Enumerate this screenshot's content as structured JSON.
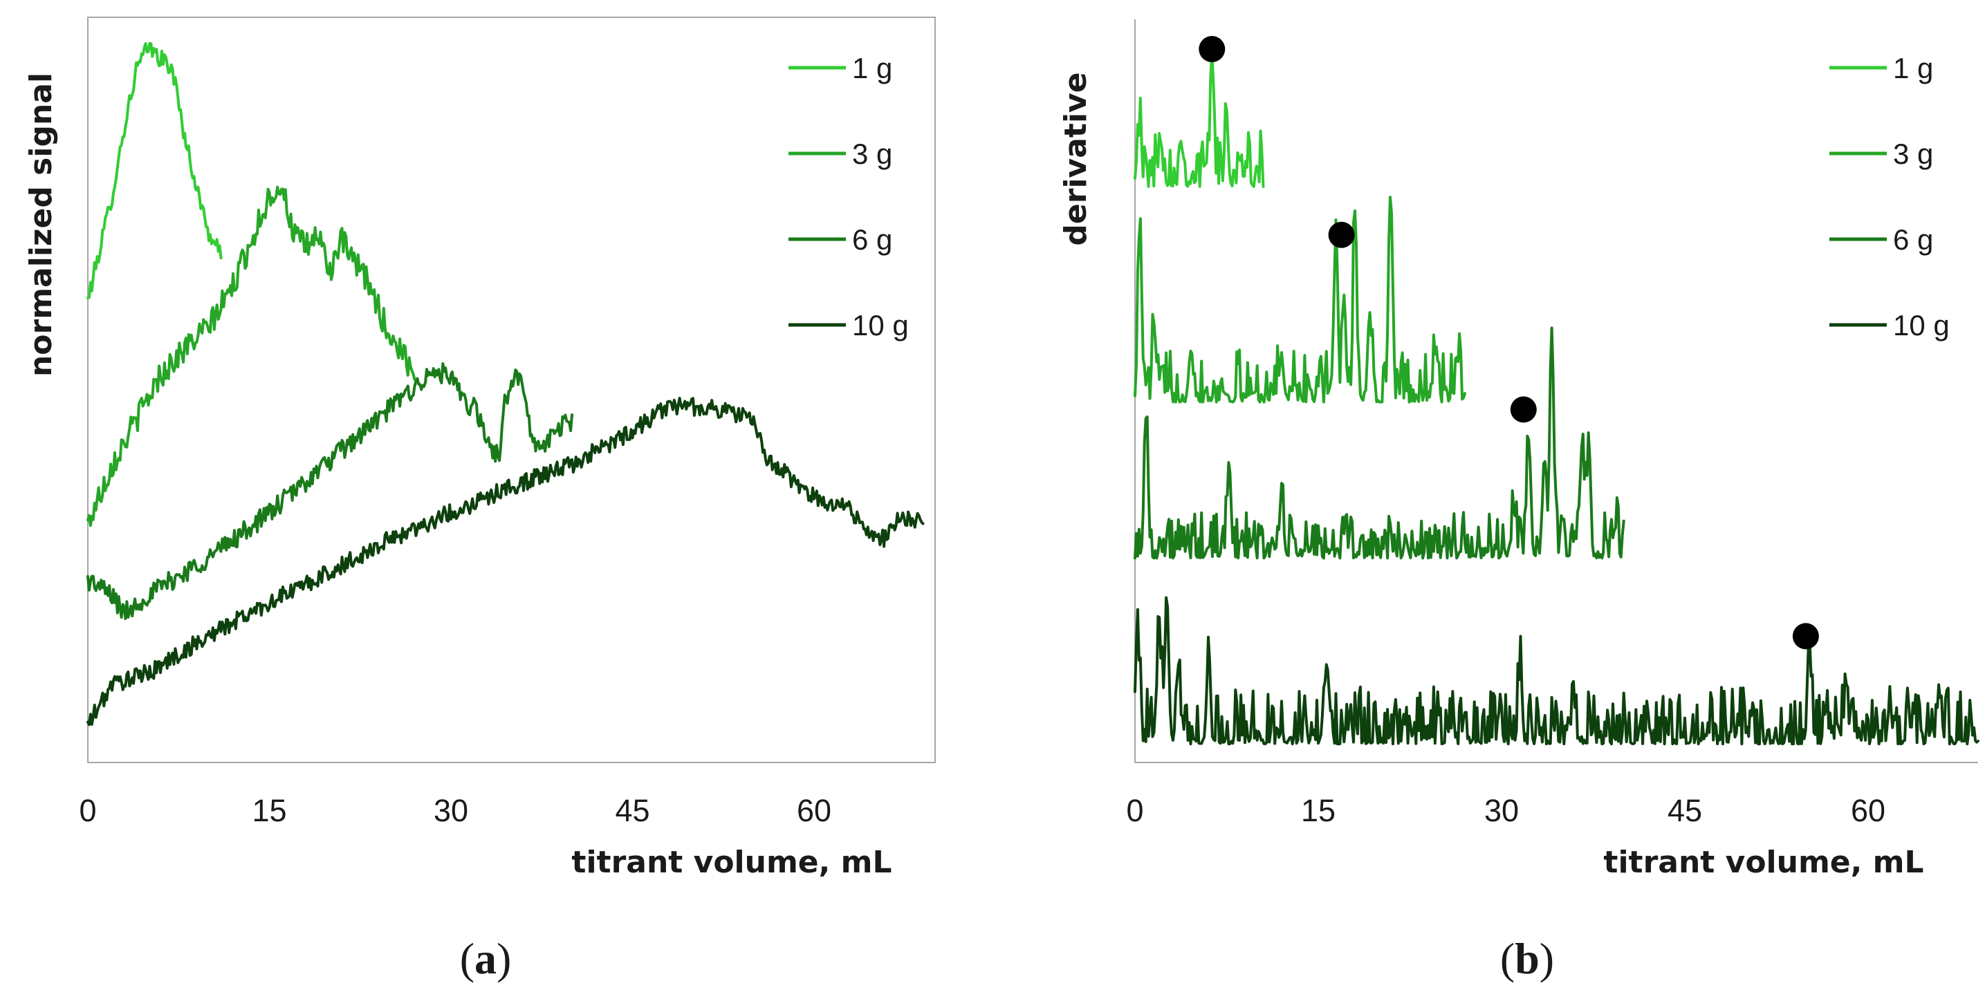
{
  "colors": {
    "1 g": "#33cc33",
    "3 g": "#26a626",
    "6 g": "#1a7a1a",
    "10 g": "#0d400d",
    "marker": "#000000",
    "axis": "#a6a6a6"
  },
  "chart_data": [
    {
      "panel": "a",
      "panel_label": "(a)",
      "panel_letter": "a",
      "type": "line",
      "title": "",
      "xlabel": "titrant volume, mL",
      "ylabel": "normalized signal",
      "xlim": [
        0,
        70
      ],
      "ylim": [
        0,
        10
      ],
      "x_ticks": [
        0,
        15,
        30,
        45,
        60
      ],
      "x_tick_labels": [
        "0",
        "15",
        "30",
        "45",
        "60"
      ],
      "y_tick_labels_shown": false,
      "legend": [
        "1 g",
        "3 g",
        "6 g",
        "10 g"
      ],
      "legend_position": "top-right",
      "series": [
        {
          "name": "1 g",
          "x_end": 11.0,
          "noise": 0.12,
          "points": [
            [
              0,
              6.2
            ],
            [
              1,
              6.9
            ],
            [
              2,
              7.6
            ],
            [
              3,
              8.5
            ],
            [
              4,
              9.3
            ],
            [
              5,
              9.6
            ],
            [
              6,
              9.45
            ],
            [
              7,
              9.3
            ],
            [
              8,
              8.4
            ],
            [
              9,
              7.7
            ],
            [
              10,
              7.1
            ],
            [
              11,
              6.8
            ]
          ]
        },
        {
          "name": "3 g",
          "x_end": 27.0,
          "noise": 0.18,
          "points": [
            [
              0,
              3.2
            ],
            [
              2,
              4.0
            ],
            [
              4,
              4.6
            ],
            [
              6,
              5.2
            ],
            [
              8,
              5.55
            ],
            [
              10,
              5.85
            ],
            [
              12,
              6.4
            ],
            [
              14,
              7.2
            ],
            [
              15,
              7.6
            ],
            [
              16,
              7.75
            ],
            [
              17,
              7.1
            ],
            [
              18,
              6.9
            ],
            [
              19,
              7.1
            ],
            [
              20,
              6.6
            ],
            [
              21,
              7.0
            ],
            [
              22,
              6.7
            ],
            [
              23,
              6.5
            ],
            [
              24,
              6.1
            ],
            [
              25,
              5.7
            ],
            [
              26,
              5.5
            ],
            [
              27,
              5.2
            ]
          ]
        },
        {
          "name": "6 g",
          "x_end": 40.0,
          "noise": 0.14,
          "points": [
            [
              0,
              2.45
            ],
            [
              1,
              2.35
            ],
            [
              2,
              2.25
            ],
            [
              3,
              2.0
            ],
            [
              5,
              2.25
            ],
            [
              10,
              2.75
            ],
            [
              15,
              3.35
            ],
            [
              20,
              4.05
            ],
            [
              25,
              4.75
            ],
            [
              27,
              5.05
            ],
            [
              29,
              5.25
            ],
            [
              30,
              5.15
            ],
            [
              31,
              4.85
            ],
            [
              32,
              4.75
            ],
            [
              33,
              4.3
            ],
            [
              34,
              4.1
            ],
            [
              34.5,
              4.9
            ],
            [
              35,
              5.05
            ],
            [
              35.5,
              5.25
            ],
            [
              36,
              4.9
            ],
            [
              37,
              4.2
            ],
            [
              38,
              4.3
            ],
            [
              39,
              4.5
            ],
            [
              40,
              4.6
            ]
          ]
        },
        {
          "name": "10 g",
          "x_end": 69.0,
          "noise": 0.12,
          "points": [
            [
              0,
              0.5
            ],
            [
              2,
              1.05
            ],
            [
              5,
              1.2
            ],
            [
              10,
              1.7
            ],
            [
              15,
              2.15
            ],
            [
              20,
              2.55
            ],
            [
              25,
              3.0
            ],
            [
              30,
              3.35
            ],
            [
              35,
              3.7
            ],
            [
              40,
              4.0
            ],
            [
              45,
              4.45
            ],
            [
              48,
              4.8
            ],
            [
              52,
              4.75
            ],
            [
              55,
              4.6
            ],
            [
              56,
              4.1
            ],
            [
              60,
              3.55
            ],
            [
              63,
              3.4
            ],
            [
              65,
              3.0
            ],
            [
              66,
              3.0
            ],
            [
              67,
              3.3
            ],
            [
              69,
              3.2
            ]
          ]
        }
      ]
    },
    {
      "panel": "b",
      "panel_label": "(b)",
      "panel_letter": "b",
      "type": "line",
      "title": "",
      "xlabel": "titrant volume, mL",
      "ylabel": "derivative",
      "xlim": [
        0,
        69
      ],
      "ylim": [
        0,
        10
      ],
      "x_ticks": [
        0,
        15,
        30,
        45,
        60
      ],
      "x_tick_labels": [
        "0",
        "15",
        "30",
        "45",
        "60"
      ],
      "y_tick_labels_shown": false,
      "legend": [
        "1 g",
        "3 g",
        "6 g",
        "10 g"
      ],
      "legend_position": "top-right",
      "series": [
        {
          "name": "1 g",
          "x_end": 10.5,
          "baseline": 7.75,
          "noise": 0.35,
          "peaks": [
            [
              0.3,
              0.7
            ],
            [
              2.1,
              0.6
            ],
            [
              3.8,
              0.5
            ],
            [
              6.3,
              1.7
            ],
            [
              7.5,
              0.55
            ],
            [
              8.6,
              0.35
            ]
          ],
          "end_point": {
            "x": 6.3,
            "y": 9.6
          }
        },
        {
          "name": "3 g",
          "x_end": 27.0,
          "baseline": 4.85,
          "noise": 0.32,
          "peaks": [
            [
              0.4,
              2.3
            ],
            [
              1.6,
              0.9
            ],
            [
              4.6,
              0.7
            ],
            [
              12.0,
              0.6
            ],
            [
              16.4,
              1.9
            ],
            [
              17.1,
              1.4
            ],
            [
              18.0,
              2.3
            ],
            [
              19.2,
              1.1
            ],
            [
              20.9,
              2.7
            ],
            [
              24.5,
              0.45
            ],
            [
              26.4,
              0.4
            ]
          ],
          "end_point": {
            "x": 16.9,
            "y": 7.1
          }
        },
        {
          "name": "6 g",
          "x_end": 40.0,
          "baseline": 2.75,
          "noise": 0.28,
          "peaks": [
            [
              0.9,
              1.8
            ],
            [
              7.7,
              1.3
            ],
            [
              12.0,
              0.8
            ],
            [
              31.0,
              0.6
            ],
            [
              32.2,
              1.6
            ],
            [
              33.5,
              1.3
            ],
            [
              34.1,
              3.1
            ],
            [
              36.6,
              1.5
            ],
            [
              37.1,
              1.3
            ],
            [
              39.3,
              0.4
            ]
          ],
          "end_point": {
            "x": 31.8,
            "y": 4.75
          }
        },
        {
          "name": "10 g",
          "x_end": 69.0,
          "baseline": 0.25,
          "noise": 0.35,
          "peaks": [
            [
              0.2,
              1.6
            ],
            [
              2.0,
              1.3
            ],
            [
              2.6,
              2.0
            ],
            [
              3.5,
              0.9
            ],
            [
              6.0,
              0.9
            ],
            [
              15.8,
              0.8
            ],
            [
              31.5,
              0.9
            ],
            [
              35.9,
              0.6
            ],
            [
              55.2,
              1.3
            ],
            [
              58.2,
              0.8
            ],
            [
              61.8,
              0.5
            ],
            [
              65.8,
              0.7
            ]
          ],
          "end_point": {
            "x": 54.9,
            "y": 1.7
          }
        }
      ]
    }
  ]
}
